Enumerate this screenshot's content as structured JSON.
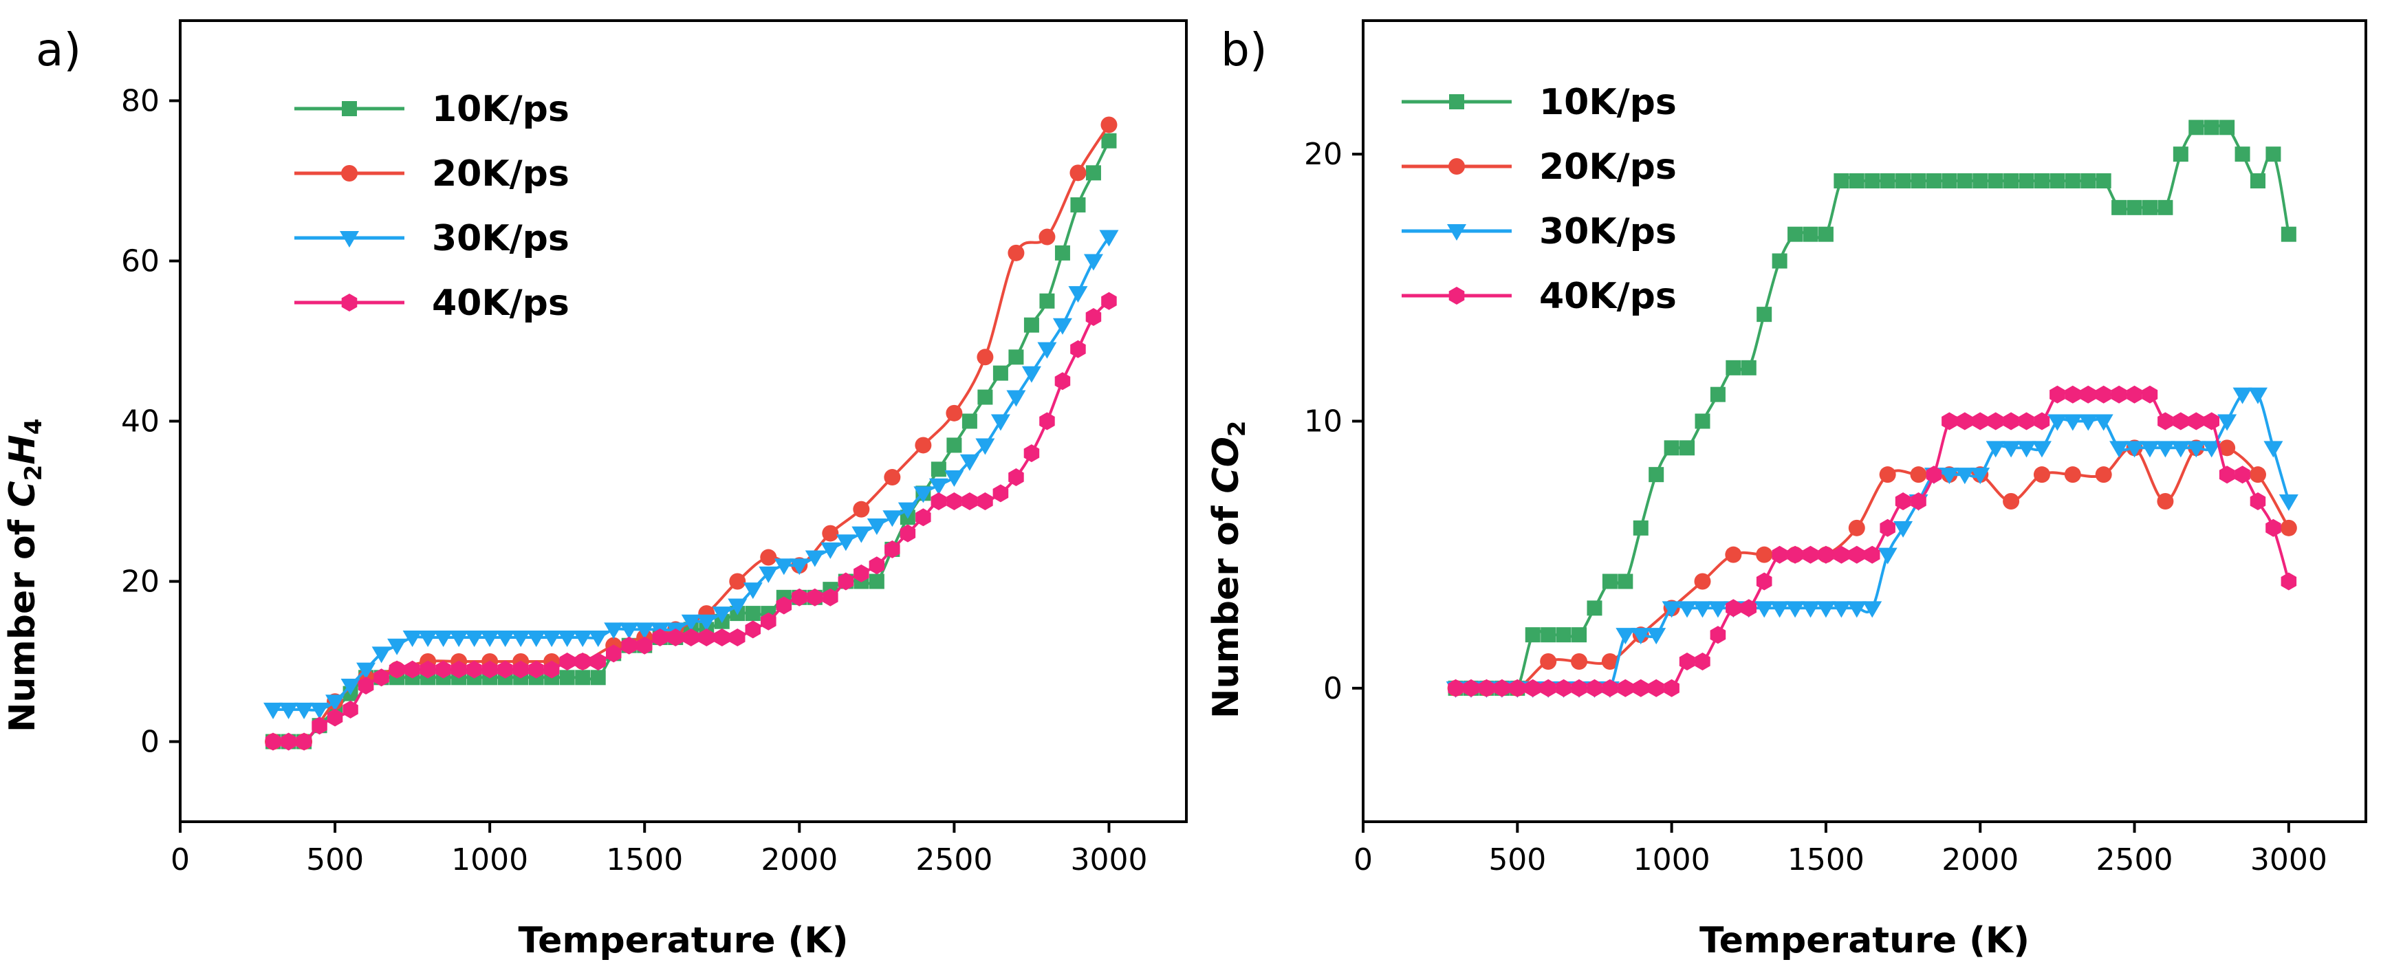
{
  "chart_data": [
    {
      "panel": "a)",
      "type": "line",
      "xlabel": "Temperature (K)",
      "ylabel": "Number of C2H4",
      "ylabel_parts": {
        "prefix": "Number of ",
        "species": "C",
        "sub1": "2",
        "mid": "H",
        "sub2": "4"
      },
      "xlim": [
        0,
        3250
      ],
      "ylim": [
        -10,
        90
      ],
      "xticks": [
        "0",
        "500",
        "1000",
        "1500",
        "2000",
        "2500",
        "3000"
      ],
      "xtick_values": [
        0,
        500,
        1000,
        1500,
        2000,
        2500,
        3000
      ],
      "yticks": [
        "0",
        "20",
        "40",
        "60",
        "80"
      ],
      "ytick_values": [
        0,
        20,
        40,
        60,
        80
      ],
      "legend_position": "top-left",
      "series": [
        {
          "name": "10K/ps",
          "color": "#3aa763",
          "marker": "square",
          "x": [
            300,
            350,
            400,
            450,
            500,
            550,
            600,
            650,
            700,
            750,
            800,
            850,
            900,
            950,
            1000,
            1050,
            1100,
            1150,
            1200,
            1250,
            1300,
            1350,
            1400,
            1450,
            1500,
            1550,
            1600,
            1650,
            1700,
            1750,
            1800,
            1850,
            1900,
            1950,
            2000,
            2050,
            2100,
            2150,
            2200,
            2250,
            2300,
            2350,
            2400,
            2450,
            2500,
            2550,
            2600,
            2650,
            2700,
            2750,
            2800,
            2850,
            2900,
            2950,
            3000
          ],
          "y": [
            0,
            0,
            0,
            2,
            4,
            6,
            8,
            8,
            8,
            8,
            8,
            8,
            8,
            8,
            8,
            8,
            8,
            8,
            8,
            8,
            8,
            8,
            11,
            12,
            12,
            13,
            13,
            14,
            14,
            15,
            16,
            16,
            16,
            18,
            18,
            18,
            19,
            20,
            20,
            20,
            24,
            28,
            31,
            34,
            37,
            40,
            43,
            46,
            48,
            52,
            55,
            61,
            67,
            71,
            75
          ]
        },
        {
          "name": "20K/ps",
          "color": "#ec4a3d",
          "marker": "circle",
          "x": [
            300,
            400,
            500,
            600,
            700,
            800,
            900,
            1000,
            1100,
            1200,
            1300,
            1400,
            1500,
            1600,
            1700,
            1800,
            1900,
            2000,
            2100,
            2200,
            2300,
            2400,
            2500,
            2600,
            2700,
            2800,
            2900,
            3000
          ],
          "y": [
            0,
            0,
            5,
            8,
            9,
            10,
            10,
            10,
            10,
            10,
            10,
            12,
            13,
            14,
            16,
            20,
            23,
            22,
            26,
            29,
            33,
            37,
            41,
            48,
            61,
            63,
            71,
            77
          ]
        },
        {
          "name": "30K/ps",
          "color": "#20a4f0",
          "marker": "triangle-down",
          "x": [
            300,
            350,
            400,
            450,
            500,
            550,
            600,
            650,
            700,
            750,
            800,
            850,
            900,
            950,
            1000,
            1050,
            1100,
            1150,
            1200,
            1250,
            1300,
            1350,
            1400,
            1450,
            1500,
            1550,
            1600,
            1650,
            1700,
            1750,
            1800,
            1850,
            1900,
            1950,
            2000,
            2050,
            2100,
            2150,
            2200,
            2250,
            2300,
            2350,
            2400,
            2450,
            2500,
            2550,
            2600,
            2650,
            2700,
            2750,
            2800,
            2850,
            2900,
            2950,
            3000
          ],
          "y": [
            4,
            4,
            4,
            4,
            5,
            7,
            9,
            11,
            12,
            13,
            13,
            13,
            13,
            13,
            13,
            13,
            13,
            13,
            13,
            13,
            13,
            13,
            14,
            14,
            14,
            14,
            14,
            15,
            15,
            16,
            17,
            19,
            21,
            22,
            22,
            23,
            24,
            25,
            26,
            27,
            28,
            29,
            31,
            32,
            33,
            35,
            37,
            40,
            43,
            46,
            49,
            52,
            56,
            60,
            63
          ]
        },
        {
          "name": "40K/ps",
          "color": "#f0237c",
          "marker": "hexagon",
          "x": [
            300,
            350,
            400,
            450,
            500,
            550,
            600,
            650,
            700,
            750,
            800,
            850,
            900,
            950,
            1000,
            1050,
            1100,
            1150,
            1200,
            1250,
            1300,
            1350,
            1400,
            1450,
            1500,
            1550,
            1600,
            1650,
            1700,
            1750,
            1800,
            1850,
            1900,
            1950,
            2000,
            2050,
            2100,
            2150,
            2200,
            2250,
            2300,
            2350,
            2400,
            2450,
            2500,
            2550,
            2600,
            2650,
            2700,
            2750,
            2800,
            2850,
            2900,
            2950,
            3000
          ],
          "y": [
            0,
            0,
            0,
            2,
            3,
            4,
            7,
            8,
            9,
            9,
            9,
            9,
            9,
            9,
            9,
            9,
            9,
            9,
            9,
            10,
            10,
            10,
            11,
            12,
            12,
            13,
            13,
            13,
            13,
            13,
            13,
            14,
            15,
            17,
            18,
            18,
            18,
            20,
            21,
            22,
            24,
            26,
            28,
            30,
            30,
            30,
            30,
            31,
            33,
            36,
            40,
            45,
            49,
            53,
            55
          ]
        }
      ]
    },
    {
      "panel": "b)",
      "type": "line",
      "xlabel": "Temperature (K)",
      "ylabel": "Number of CO2",
      "ylabel_parts": {
        "prefix": "Number of ",
        "species": "CO",
        "sub1": "2",
        "mid": "",
        "sub2": ""
      },
      "xlim": [
        0,
        3250
      ],
      "ylim": [
        -5,
        25
      ],
      "xticks": [
        "0",
        "500",
        "1000",
        "1500",
        "2000",
        "2500",
        "3000"
      ],
      "xtick_values": [
        0,
        500,
        1000,
        1500,
        2000,
        2500,
        3000
      ],
      "yticks": [
        "0",
        "10",
        "20"
      ],
      "ytick_values": [
        0,
        10,
        20
      ],
      "legend_position": "top-left",
      "series": [
        {
          "name": "10K/ps",
          "color": "#3aa763",
          "marker": "square",
          "x": [
            300,
            350,
            400,
            450,
            500,
            550,
            600,
            650,
            700,
            750,
            800,
            850,
            900,
            950,
            1000,
            1050,
            1100,
            1150,
            1200,
            1250,
            1300,
            1350,
            1400,
            1450,
            1500,
            1550,
            1600,
            1650,
            1700,
            1750,
            1800,
            1850,
            1900,
            1950,
            2000,
            2050,
            2100,
            2150,
            2200,
            2250,
            2300,
            2350,
            2400,
            2450,
            2500,
            2550,
            2600,
            2650,
            2700,
            2750,
            2800,
            2850,
            2900,
            2950,
            3000
          ],
          "y": [
            0,
            0,
            0,
            0,
            0,
            2,
            2,
            2,
            2,
            3,
            4,
            4,
            6,
            8,
            9,
            9,
            10,
            11,
            12,
            12,
            14,
            16,
            17,
            17,
            17,
            19,
            19,
            19,
            19,
            19,
            19,
            19,
            19,
            19,
            19,
            19,
            19,
            19,
            19,
            19,
            19,
            19,
            19,
            18,
            18,
            18,
            18,
            20,
            21,
            21,
            21,
            20,
            19,
            20,
            17
          ]
        },
        {
          "name": "20K/ps",
          "color": "#ec4a3d",
          "marker": "circle",
          "x": [
            300,
            400,
            500,
            600,
            700,
            800,
            900,
            1000,
            1100,
            1200,
            1300,
            1400,
            1500,
            1600,
            1700,
            1800,
            1900,
            2000,
            2100,
            2200,
            2300,
            2400,
            2500,
            2600,
            2700,
            2800,
            2900,
            3000
          ],
          "y": [
            0,
            0,
            0,
            1,
            1,
            1,
            2,
            3,
            4,
            5,
            5,
            5,
            5,
            6,
            8,
            8,
            8,
            8,
            7,
            8,
            8,
            8,
            9,
            7,
            9,
            9,
            8,
            6
          ]
        },
        {
          "name": "30K/ps",
          "color": "#20a4f0",
          "marker": "triangle-down",
          "x": [
            300,
            350,
            400,
            450,
            500,
            550,
            600,
            650,
            700,
            750,
            800,
            850,
            900,
            950,
            1000,
            1050,
            1100,
            1150,
            1200,
            1250,
            1300,
            1350,
            1400,
            1450,
            1500,
            1550,
            1600,
            1650,
            1700,
            1750,
            1800,
            1850,
            1900,
            1950,
            2000,
            2050,
            2100,
            2150,
            2200,
            2250,
            2300,
            2350,
            2400,
            2450,
            2500,
            2550,
            2600,
            2650,
            2700,
            2750,
            2800,
            2850,
            2900,
            2950,
            3000
          ],
          "y": [
            0,
            0,
            0,
            0,
            0,
            0,
            0,
            0,
            0,
            0,
            0,
            2,
            2,
            2,
            3,
            3,
            3,
            3,
            3,
            3,
            3,
            3,
            3,
            3,
            3,
            3,
            3,
            3,
            5,
            6,
            7,
            8,
            8,
            8,
            8,
            9,
            9,
            9,
            9,
            10,
            10,
            10,
            10,
            9,
            9,
            9,
            9,
            9,
            9,
            9,
            10,
            11,
            11,
            9,
            7
          ]
        },
        {
          "name": "40K/ps",
          "color": "#f0237c",
          "marker": "hexagon",
          "x": [
            300,
            350,
            400,
            450,
            500,
            550,
            600,
            650,
            700,
            750,
            800,
            850,
            900,
            950,
            1000,
            1050,
            1100,
            1150,
            1200,
            1250,
            1300,
            1350,
            1400,
            1450,
            1500,
            1550,
            1600,
            1650,
            1700,
            1750,
            1800,
            1850,
            1900,
            1950,
            2000,
            2050,
            2100,
            2150,
            2200,
            2250,
            2300,
            2350,
            2400,
            2450,
            2500,
            2550,
            2600,
            2650,
            2700,
            2750,
            2800,
            2850,
            2900,
            2950,
            3000
          ],
          "y": [
            0,
            0,
            0,
            0,
            0,
            0,
            0,
            0,
            0,
            0,
            0,
            0,
            0,
            0,
            0,
            1,
            1,
            2,
            3,
            3,
            4,
            5,
            5,
            5,
            5,
            5,
            5,
            5,
            6,
            7,
            7,
            8,
            10,
            10,
            10,
            10,
            10,
            10,
            10,
            11,
            11,
            11,
            11,
            11,
            11,
            11,
            10,
            10,
            10,
            10,
            8,
            8,
            7,
            6,
            4
          ]
        }
      ]
    }
  ]
}
